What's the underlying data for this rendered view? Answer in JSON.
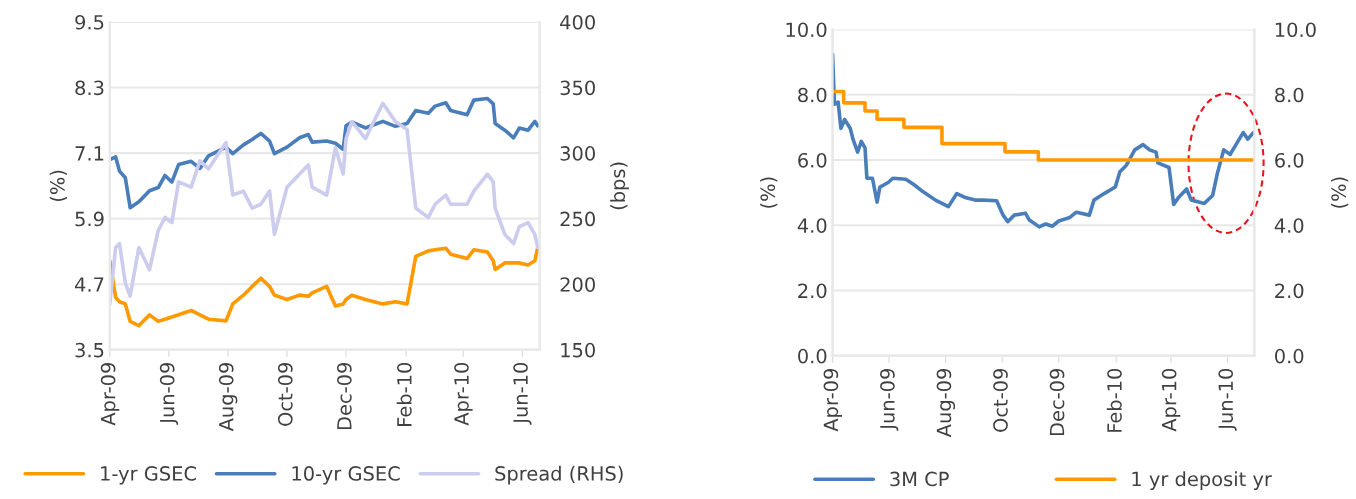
{
  "chart_data": [
    {
      "type": "line",
      "ylabel": "(%)",
      "y2label": "(bps)",
      "grid": "y",
      "legend": "bottom",
      "xlim": [
        "2009-04-01",
        "2010-06-19"
      ],
      "xticks": [
        {
          "value": "2009-04-01",
          "label": "Apr-09"
        },
        {
          "value": "2009-06-01",
          "label": "Jun-09"
        },
        {
          "value": "2009-08-01",
          "label": "Aug-09"
        },
        {
          "value": "2009-10-01",
          "label": "Oct-09"
        },
        {
          "value": "2009-12-01",
          "label": "Dec-09"
        },
        {
          "value": "2010-02-01",
          "label": "Feb-10"
        },
        {
          "value": "2010-04-01",
          "label": "Apr-10"
        },
        {
          "value": "2010-06-01",
          "label": "Jun-10"
        }
      ],
      "ylim": [
        3.5,
        9.5
      ],
      "yticks": [
        3.5,
        4.7,
        5.9,
        7.1,
        8.3,
        9.5
      ],
      "y2lim": [
        150,
        400
      ],
      "y2ticks": [
        150,
        200,
        250,
        300,
        350,
        400
      ],
      "x": [
        "2009-04-01",
        "2009-04-07",
        "2009-04-11",
        "2009-04-17",
        "2009-04-22",
        "2009-05-01",
        "2009-05-12",
        "2009-05-21",
        "2009-05-28",
        "2009-06-04",
        "2009-06-11",
        "2009-06-24",
        "2009-07-03",
        "2009-07-12",
        "2009-07-30",
        "2009-08-06",
        "2009-08-17",
        "2009-08-26",
        "2009-09-04",
        "2009-09-13",
        "2009-09-18",
        "2009-10-01",
        "2009-10-14",
        "2009-10-23",
        "2009-10-27",
        "2009-11-11",
        "2009-11-20",
        "2009-11-28",
        "2009-12-01",
        "2009-12-07",
        "2009-12-21",
        "2010-01-08",
        "2010-01-21",
        "2010-02-02",
        "2010-02-11",
        "2010-02-24",
        "2010-03-03",
        "2010-03-14",
        "2010-03-19",
        "2010-04-05",
        "2010-04-12",
        "2010-04-26",
        "2010-05-02",
        "2010-05-04",
        "2010-05-14",
        "2010-05-23",
        "2010-05-29",
        "2010-06-07",
        "2010-06-14",
        "2010-06-17"
      ],
      "series": [
        {
          "name": "1-yr GSEC",
          "color": "#ff9900",
          "values": [
            5.13,
            4.46,
            4.38,
            4.34,
            4.02,
            3.94,
            4.14,
            4.02,
            4.06,
            4.1,
            4.14,
            4.22,
            4.14,
            4.06,
            4.03,
            4.34,
            4.5,
            4.66,
            4.81,
            4.66,
            4.5,
            4.42,
            4.5,
            4.48,
            4.54,
            4.66,
            4.3,
            4.34,
            4.42,
            4.5,
            4.42,
            4.34,
            4.38,
            4.34,
            5.21,
            5.31,
            5.33,
            5.36,
            5.25,
            5.17,
            5.33,
            5.29,
            5.13,
            4.97,
            5.09,
            5.09,
            5.09,
            5.05,
            5.13,
            5.37
          ]
        },
        {
          "name": "10-yr GSEC",
          "color": "#4a7ebb",
          "values": [
            6.98,
            7.03,
            6.77,
            6.65,
            6.1,
            6.21,
            6.41,
            6.47,
            6.69,
            6.57,
            6.89,
            6.95,
            6.82,
            7.05,
            7.21,
            7.09,
            7.25,
            7.35,
            7.46,
            7.32,
            7.09,
            7.21,
            7.38,
            7.44,
            7.3,
            7.32,
            7.28,
            7.17,
            7.6,
            7.67,
            7.56,
            7.68,
            7.59,
            7.64,
            7.88,
            7.83,
            7.96,
            8.02,
            7.88,
            7.8,
            8.07,
            8.1,
            8.0,
            7.64,
            7.52,
            7.38,
            7.56,
            7.52,
            7.68,
            7.6
          ]
        },
        {
          "name": "Spread (RHS)",
          "color": "#ccccee",
          "axis": "y2",
          "values": [
            185,
            228,
            231,
            201,
            191,
            228,
            211,
            241,
            251,
            247,
            278,
            274,
            294,
            288,
            308,
            268,
            271,
            258,
            261,
            271,
            238,
            274,
            284,
            291,
            274,
            268,
            304,
            284,
            311,
            324,
            311,
            338,
            324,
            318,
            258,
            251,
            261,
            268,
            261,
            261,
            271,
            284,
            278,
            258,
            238,
            231,
            244,
            247,
            238,
            228
          ]
        }
      ]
    },
    {
      "type": "line",
      "ylabel": "(%)",
      "y2label": "(%)",
      "grid": "y",
      "legend": "bottom",
      "xlim": [
        "2009-04-01",
        "2010-06-30"
      ],
      "xticks": [
        {
          "value": "2009-04-01",
          "label": "Apr-09"
        },
        {
          "value": "2009-06-01",
          "label": "Jun-09"
        },
        {
          "value": "2009-08-01",
          "label": "Aug-09"
        },
        {
          "value": "2009-10-01",
          "label": "Oct-09"
        },
        {
          "value": "2009-12-01",
          "label": "Dec-09"
        },
        {
          "value": "2010-02-01",
          "label": "Feb-10"
        },
        {
          "value": "2010-04-01",
          "label": "Apr-10"
        },
        {
          "value": "2010-06-01",
          "label": "Jun-10"
        }
      ],
      "ylim": [
        0,
        10
      ],
      "yticks": [
        {
          "value": 0,
          "label": "0.0"
        },
        {
          "value": 2,
          "label": "2.0"
        },
        {
          "value": 4,
          "label": "4.0"
        },
        {
          "value": 6,
          "label": "6.0"
        },
        {
          "value": 8,
          "label": "8.0"
        },
        {
          "value": 10,
          "label": "10.0"
        }
      ],
      "y2lim": [
        0,
        10
      ],
      "y2ticks": [
        {
          "value": 0,
          "label": "0.0"
        },
        {
          "value": 2,
          "label": "2.0"
        },
        {
          "value": 4,
          "label": "4.0"
        },
        {
          "value": 6,
          "label": "6.0"
        },
        {
          "value": 8,
          "label": "8.0"
        },
        {
          "value": 10,
          "label": "10.0"
        }
      ],
      "series": [
        {
          "name": "3M CP",
          "color": "#4a7ebb",
          "x": [
            "2009-04-01",
            "2009-04-03",
            "2009-04-07",
            "2009-04-10",
            "2009-04-14",
            "2009-04-20",
            "2009-04-23",
            "2009-04-28",
            "2009-05-02",
            "2009-05-06",
            "2009-05-08",
            "2009-05-14",
            "2009-05-19",
            "2009-05-22",
            "2009-05-31",
            "2009-06-05",
            "2009-06-19",
            "2009-06-28",
            "2009-07-07",
            "2009-07-21",
            "2009-08-04",
            "2009-08-13",
            "2009-08-23",
            "2009-09-02",
            "2009-09-11",
            "2009-09-25",
            "2009-10-02",
            "2009-10-07",
            "2009-10-14",
            "2009-10-26",
            "2009-10-30",
            "2009-11-10",
            "2009-11-17",
            "2009-11-24",
            "2009-12-01",
            "2009-12-13",
            "2009-12-20",
            "2010-01-03",
            "2010-01-08",
            "2010-01-19",
            "2010-01-31",
            "2010-02-05",
            "2010-02-12",
            "2010-02-21",
            "2010-03-02",
            "2010-03-09",
            "2010-03-16",
            "2010-03-18",
            "2010-03-30",
            "2010-04-04",
            "2010-04-09",
            "2010-04-18",
            "2010-04-23",
            "2010-05-07",
            "2010-05-16",
            "2010-05-21",
            "2010-05-28",
            "2010-06-04",
            "2010-06-11",
            "2010-06-18",
            "2010-06-23",
            "2010-06-29"
          ],
          "values": [
            9.24,
            7.71,
            7.77,
            6.97,
            7.24,
            6.97,
            6.64,
            6.24,
            6.57,
            6.37,
            5.44,
            5.44,
            4.71,
            5.17,
            5.31,
            5.44,
            5.41,
            5.24,
            5.04,
            4.77,
            4.57,
            4.97,
            4.84,
            4.77,
            4.77,
            4.75,
            4.31,
            4.11,
            4.31,
            4.37,
            4.17,
            3.95,
            4.04,
            3.97,
            4.13,
            4.24,
            4.4,
            4.31,
            4.77,
            4.97,
            5.17,
            5.64,
            5.84,
            6.31,
            6.47,
            6.31,
            6.24,
            5.91,
            5.77,
            4.64,
            4.84,
            5.11,
            4.77,
            4.67,
            4.91,
            5.57,
            6.31,
            6.17,
            6.51,
            6.84,
            6.64,
            6.84
          ]
        },
        {
          "name": "1 yr deposit yr",
          "color": "#ff9900",
          "type": "step",
          "x": [
            "2009-04-01",
            "2009-04-13",
            "2009-05-06",
            "2009-05-19",
            "2009-06-17",
            "2009-07-28",
            "2009-10-04",
            "2009-11-09",
            "2010-06-29"
          ],
          "values": [
            8.1,
            7.75,
            7.5,
            7.25,
            7.0,
            6.5,
            6.25,
            6.0,
            6.0
          ]
        }
      ]
    }
  ]
}
